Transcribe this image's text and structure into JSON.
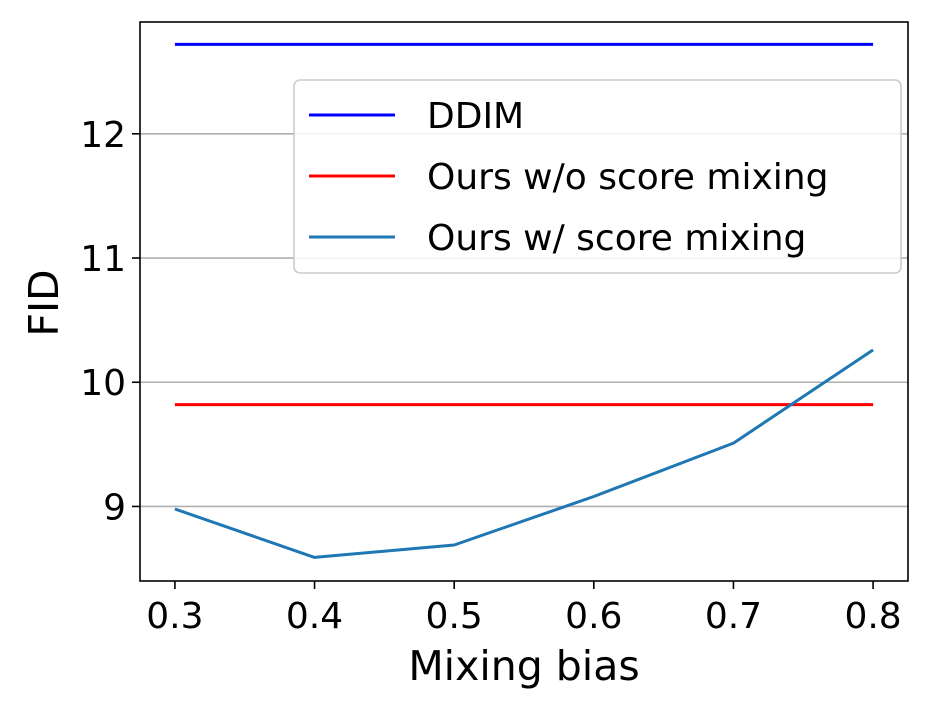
{
  "chart_data": {
    "type": "line",
    "title": "",
    "xlabel": "Mixing bias",
    "ylabel": "FID",
    "xlim": [
      0.275,
      0.825
    ],
    "ylim": [
      8.4,
      12.9
    ],
    "x": [
      0.3,
      0.4,
      0.5,
      0.6,
      0.7,
      0.8
    ],
    "xticks": [
      "0.3",
      "0.4",
      "0.5",
      "0.6",
      "0.7",
      "0.8"
    ],
    "yticks": [
      "9",
      "10",
      "11",
      "12"
    ],
    "ytick_values": [
      9,
      10,
      11,
      12
    ],
    "grid": "horizontal",
    "legend_position": "upper right",
    "series": [
      {
        "name": "DDIM",
        "color": "#0000ff",
        "values": [
          12.72,
          12.72,
          12.72,
          12.72,
          12.72,
          12.72
        ]
      },
      {
        "name": "Ours w/o score mixing",
        "color": "#ff0000",
        "values": [
          9.82,
          9.82,
          9.82,
          9.82,
          9.82,
          9.82
        ]
      },
      {
        "name": "Ours w/ score mixing",
        "color": "#1f77b4",
        "values": [
          8.98,
          8.59,
          8.69,
          9.08,
          9.51,
          10.26
        ]
      }
    ]
  }
}
